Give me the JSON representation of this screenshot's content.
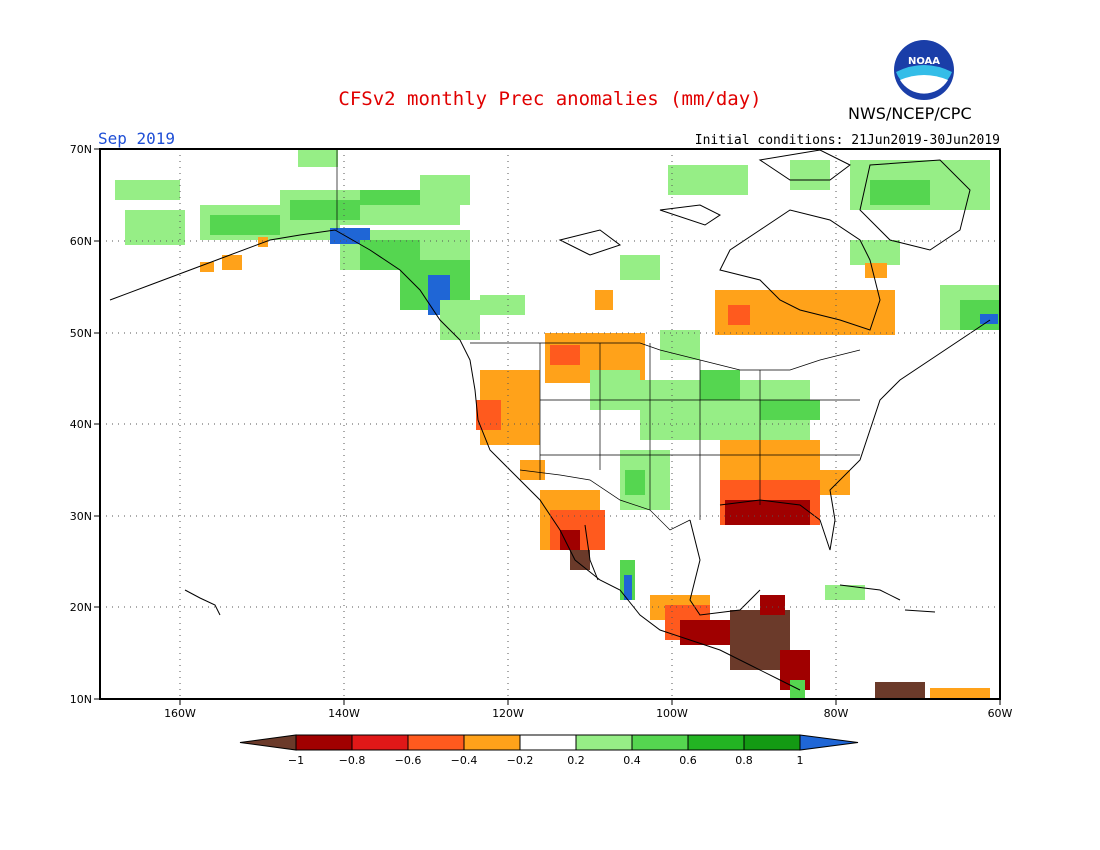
{
  "title": "CFSv2 monthly Prec anomalies (mm/day)",
  "center": "NWS/NCEP/CPC",
  "logo_text": "NOAA",
  "valid_month": "Sep 2019",
  "initial_conditions": "Initial conditions: 21Jun2019-30Jun2019",
  "map": {
    "lon_labels": [
      "160W",
      "140W",
      "120W",
      "100W",
      "80W",
      "60W"
    ],
    "lat_labels": [
      "70N",
      "60N",
      "50N",
      "40N",
      "30N",
      "20N",
      "10N"
    ]
  },
  "legend": {
    "labels": [
      "−1",
      "−0.8",
      "−0.6",
      "−0.4",
      "−0.2",
      "0.2",
      "0.4",
      "0.6",
      "0.8",
      "1"
    ],
    "colors": [
      "#6b3a2a",
      "#a00000",
      "#e01818",
      "#ff5a1e",
      "#ffa21a",
      "#ffffff",
      "#96ee86",
      "#55d650",
      "#23b423",
      "#139a13",
      "#1f66d6"
    ]
  }
}
